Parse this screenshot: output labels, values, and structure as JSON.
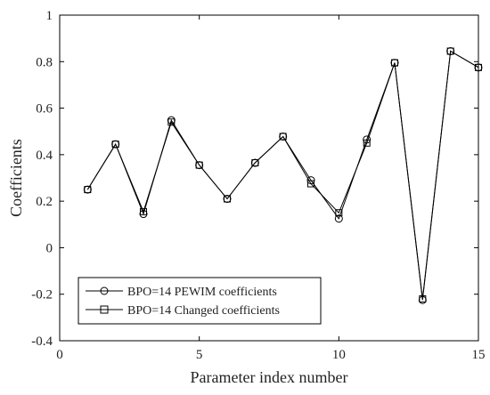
{
  "chart_data": {
    "type": "line",
    "title": "",
    "xlabel": "Parameter index number",
    "ylabel": "Coefficients",
    "xlim": [
      0,
      15
    ],
    "ylim": [
      -0.4,
      1.0
    ],
    "xticks": [
      0,
      5,
      10,
      15
    ],
    "xtick_labels": [
      "0",
      "5",
      "10",
      "15"
    ],
    "yticks": [
      -0.4,
      -0.2,
      0,
      0.2,
      0.4,
      0.6,
      0.8,
      1.0
    ],
    "ytick_labels": [
      "-0.4",
      "-0.2",
      "0",
      "0.2",
      "0.4",
      "0.6",
      "0.8",
      "1"
    ],
    "grid": false,
    "legend_position": "bottom-left",
    "x": [
      1,
      2,
      3,
      4,
      5,
      6,
      7,
      8,
      9,
      10,
      11,
      12,
      13,
      14,
      15
    ],
    "series": [
      {
        "name": "BPO=14 PEWIM coefficients",
        "marker": "circle",
        "color": "#000000",
        "values": [
          0.25,
          0.445,
          0.145,
          0.548,
          0.355,
          0.21,
          0.365,
          0.478,
          0.29,
          0.125,
          0.465,
          0.795,
          -0.225,
          0.845,
          0.775
        ]
      },
      {
        "name": "BPO=14 Changed coefficients",
        "marker": "square",
        "color": "#000000",
        "values": [
          0.25,
          0.445,
          0.155,
          0.54,
          0.355,
          0.21,
          0.365,
          0.478,
          0.275,
          0.15,
          0.45,
          0.795,
          -0.22,
          0.845,
          0.775
        ]
      }
    ]
  }
}
